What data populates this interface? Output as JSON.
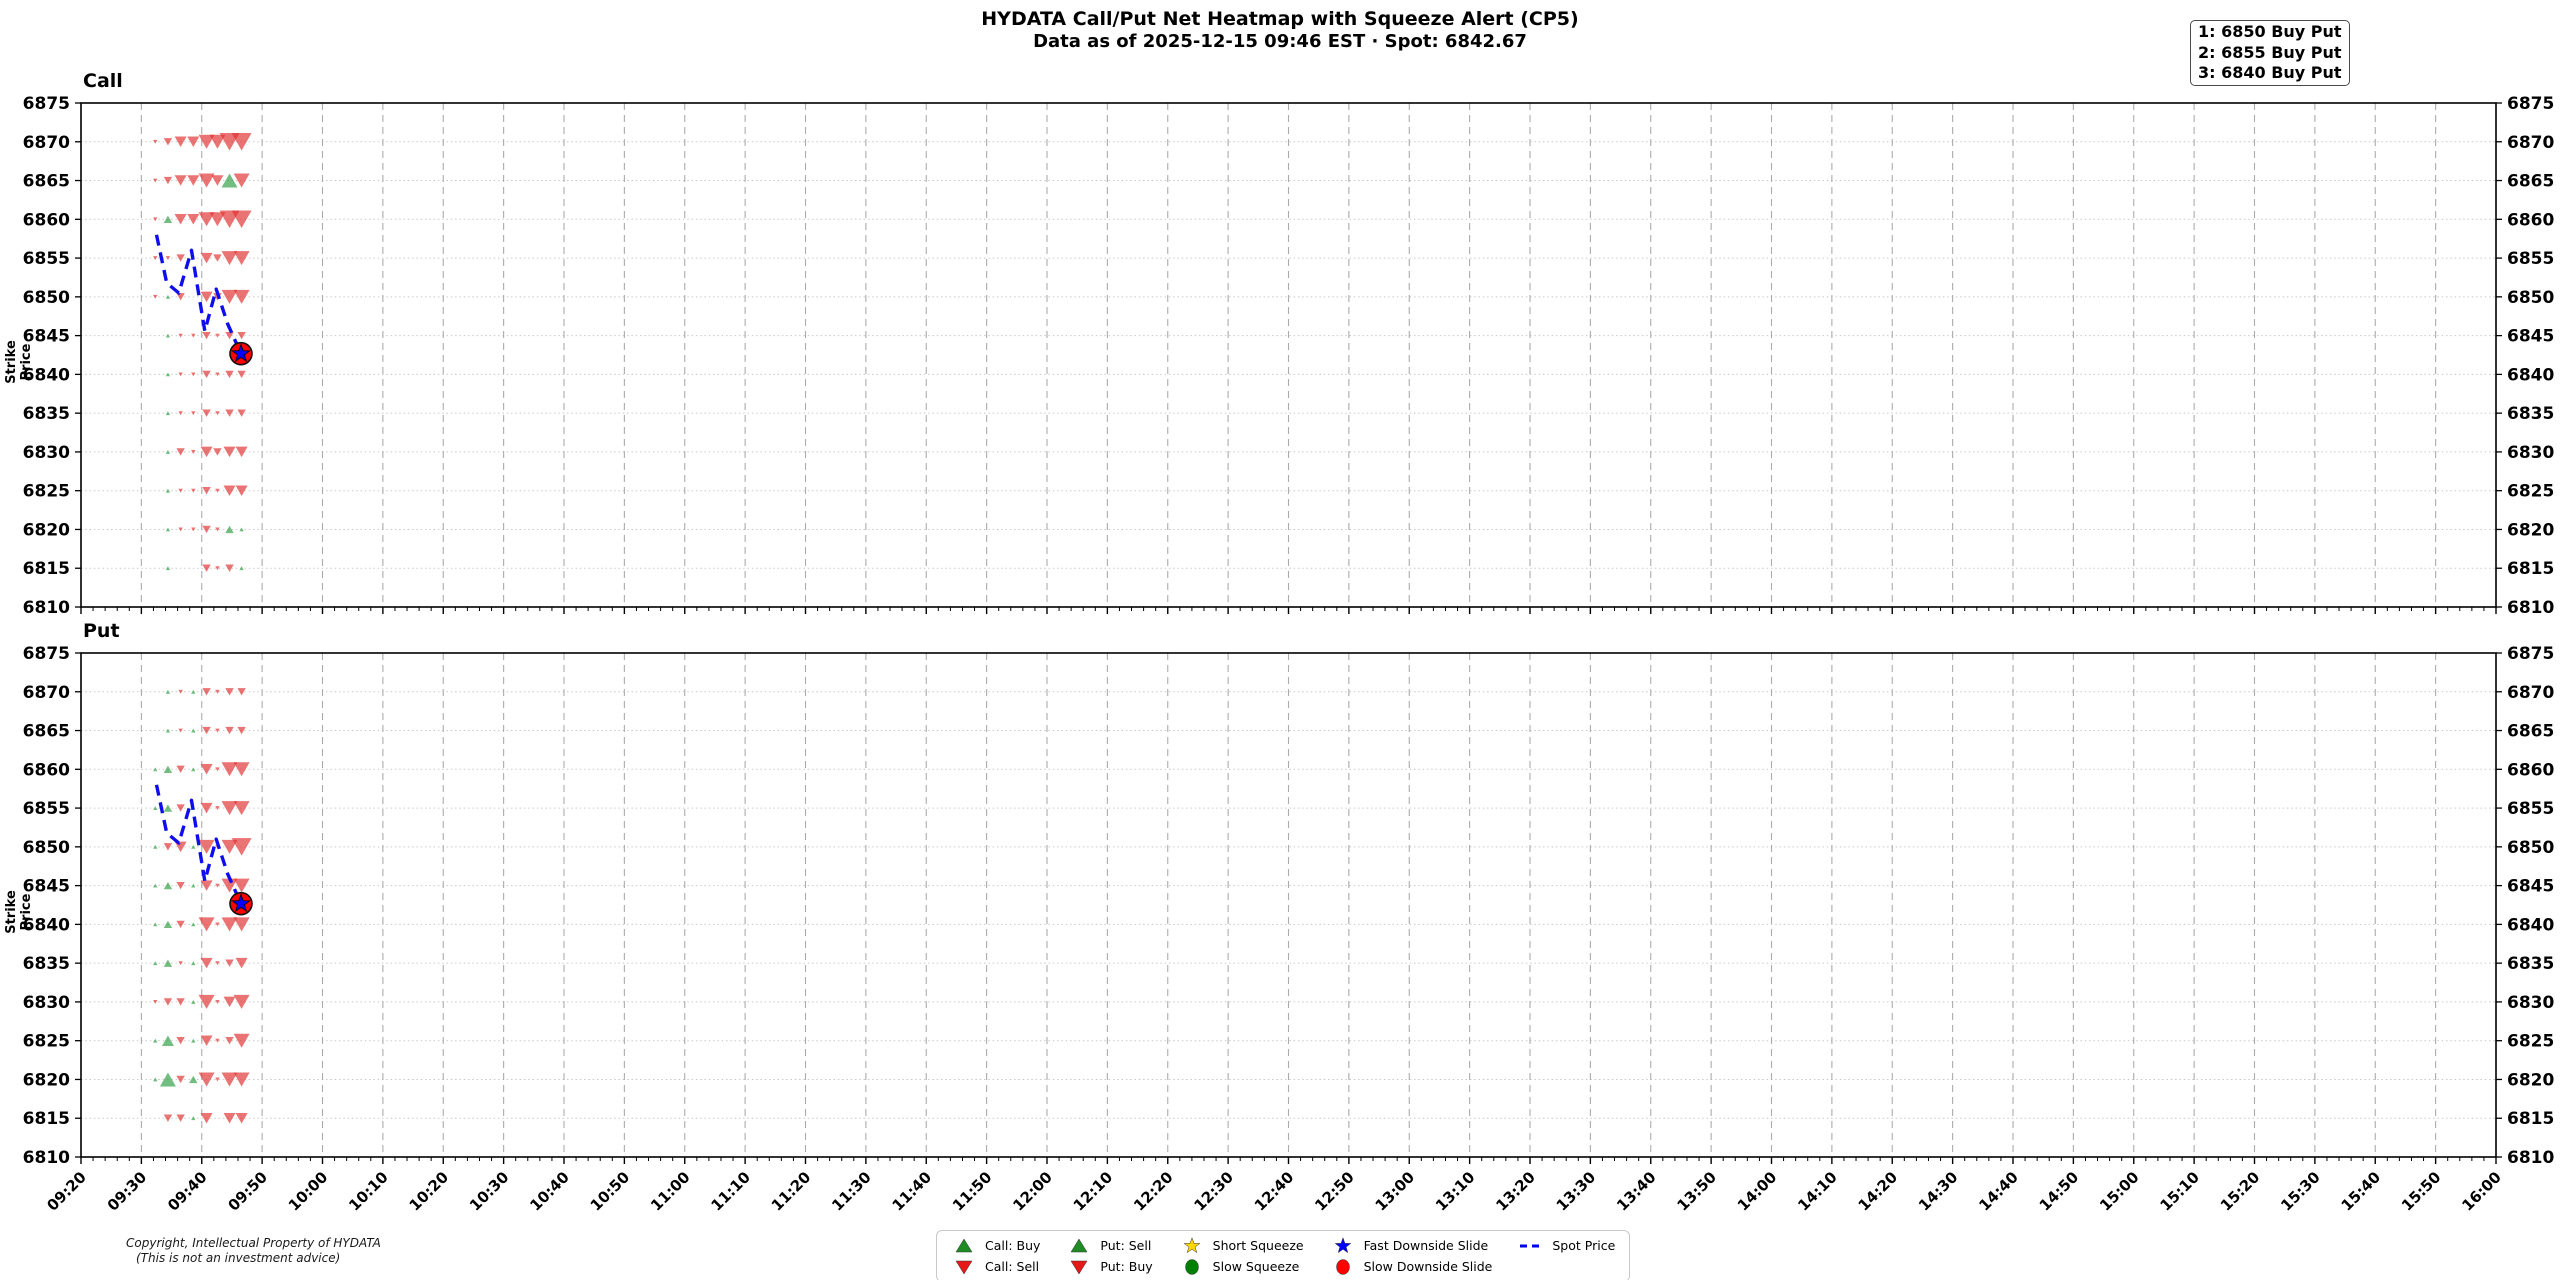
{
  "header": {
    "title": "HYDATA Call/Put Net Heatmap with Squeeze Alert (CP5)",
    "subtitle": "Data as of 2025-12-15 09:46 EST · Spot: 6842.67"
  },
  "annotation": {
    "lines": [
      "1: 6850 Buy Put",
      "2: 6855 Buy Put",
      "3: 6840 Buy Put"
    ]
  },
  "copyright": {
    "line1": "Copyright, Intellectual Property of HYDATA",
    "line2": "(This is not an investment advice)"
  },
  "legend": {
    "items": [
      {
        "label": "Call: Buy",
        "marker": "triangle-up",
        "color": "#1f8b24"
      },
      {
        "label": "Call: Sell",
        "marker": "triangle-down",
        "color": "#e61919"
      },
      {
        "label": "Put: Sell",
        "marker": "triangle-up",
        "color": "#1f8b24"
      },
      {
        "label": "Put: Buy",
        "marker": "triangle-down",
        "color": "#e61919"
      },
      {
        "label": "Short Squeeze",
        "marker": "star",
        "color": "#ffd700"
      },
      {
        "label": "Slow Squeeze",
        "marker": "circle",
        "color": "#008000"
      },
      {
        "label": "Fast Downside Slide",
        "marker": "star",
        "color": "#0000ff"
      },
      {
        "label": "Slow Downside Slide",
        "marker": "circle",
        "color": "#ff0000"
      },
      {
        "label": "Spot Price",
        "marker": "dashes",
        "color": "#0000ee"
      }
    ]
  },
  "colors": {
    "marker_down": "#e03131",
    "marker_up": "#2f9e44",
    "marker_opacity": 0.68,
    "spot_line": "#0d0dee",
    "event_circle_fill": "#ff0000",
    "event_circle_edge": "#111111",
    "event_star_fill": "#0000ff",
    "grid_horizontal": "#c9c9c9",
    "grid_vertical": "#ababab",
    "spine": "#000000"
  },
  "chart_data": {
    "type": "scatter",
    "shared_x": {
      "start": "09:20",
      "end": "16:00",
      "major_tick_minutes": 10,
      "minor_tick_minutes": 2,
      "ticks": [
        "09:20",
        "09:30",
        "09:40",
        "09:50",
        "10:00",
        "10:10",
        "10:20",
        "10:30",
        "10:40",
        "10:50",
        "11:00",
        "11:10",
        "11:20",
        "11:30",
        "11:40",
        "11:50",
        "12:00",
        "12:10",
        "12:20",
        "12:30",
        "12:40",
        "12:50",
        "13:00",
        "13:10",
        "13:20",
        "13:30",
        "13:40",
        "13:50",
        "14:00",
        "14:10",
        "14:20",
        "14:30",
        "14:40",
        "14:50",
        "15:00",
        "15:10",
        "15:20",
        "15:30",
        "15:40",
        "15:50",
        "16:00"
      ]
    },
    "shared_y": {
      "label": "Strike Price",
      "lim": [
        6810,
        6875
      ],
      "ticks": [
        6810,
        6815,
        6820,
        6825,
        6830,
        6835,
        6840,
        6845,
        6850,
        6855,
        6860,
        6865,
        6870,
        6875
      ]
    },
    "marker_x_minutes_after_0920": [
      12.3,
      14.4,
      16.5,
      18.6,
      20.8,
      22.6,
      24.6,
      26.6
    ],
    "spot_line": {
      "x_minutes_after_0920": [
        12.5,
        14.2,
        16.2,
        18.3,
        20.5,
        22.4,
        24.3,
        26.5
      ],
      "values": [
        6858,
        6851.8,
        6850.5,
        6856,
        6845.6,
        6851,
        6846.5,
        6842.67
      ]
    },
    "event": {
      "time": "09:46",
      "value": 6842.67,
      "x_minute_after_0920": 26.5,
      "markers": [
        "slow-downside-slide",
        "fast-downside-slide"
      ]
    },
    "panels": [
      {
        "title": "Call",
        "meaning": {
          "up": "Call: Buy",
          "dn": "Call: Sell"
        },
        "markers": [
          {
            "strike": 6870,
            "cells": [
              [
                "dn",
                1
              ],
              [
                "dn",
                2
              ],
              [
                "dn",
                3
              ],
              [
                "dn",
                3
              ],
              [
                "dn",
                4
              ],
              [
                "dn",
                4
              ],
              [
                "dn",
                5
              ],
              [
                "dn",
                5
              ]
            ]
          },
          {
            "strike": 6865,
            "cells": [
              [
                "dn",
                1
              ],
              [
                "dn",
                2
              ],
              [
                "dn",
                3
              ],
              [
                "dn",
                3
              ],
              [
                "dn",
                4
              ],
              [
                "dn",
                3
              ],
              [
                "up",
                4
              ],
              [
                "dn",
                4
              ]
            ]
          },
          {
            "strike": 6860,
            "cells": [
              [
                "dn",
                1
              ],
              [
                "up",
                2
              ],
              [
                "dn",
                3
              ],
              [
                "dn",
                3
              ],
              [
                "dn",
                4
              ],
              [
                "dn",
                4
              ],
              [
                "dn",
                5
              ],
              [
                "dn",
                5
              ]
            ]
          },
          {
            "strike": 6855,
            "cells": [
              [
                "dn",
                1
              ],
              [
                "dn",
                1
              ],
              [
                "dn",
                2
              ],
              null,
              [
                "dn",
                3
              ],
              [
                "dn",
                2
              ],
              [
                "dn",
                4
              ],
              [
                "dn",
                4
              ]
            ]
          },
          {
            "strike": 6850,
            "cells": [
              [
                "dn",
                1
              ],
              [
                "up",
                1
              ],
              [
                "dn",
                2
              ],
              null,
              [
                "dn",
                3
              ],
              [
                "dn",
                2
              ],
              [
                "dn",
                4
              ],
              [
                "dn",
                4
              ]
            ]
          },
          {
            "strike": 6845,
            "cells": [
              null,
              [
                "up",
                1
              ],
              [
                "dn",
                1
              ],
              [
                "dn",
                1
              ],
              [
                "dn",
                2
              ],
              [
                "dn",
                1
              ],
              [
                "dn",
                2
              ],
              [
                "dn",
                2
              ]
            ]
          },
          {
            "strike": 6840,
            "cells": [
              null,
              [
                "up",
                1
              ],
              [
                "dn",
                1
              ],
              [
                "dn",
                1
              ],
              [
                "dn",
                2
              ],
              [
                "dn",
                1
              ],
              [
                "dn",
                2
              ],
              [
                "dn",
                2
              ]
            ]
          },
          {
            "strike": 6835,
            "cells": [
              null,
              [
                "up",
                1
              ],
              [
                "dn",
                1
              ],
              [
                "dn",
                1
              ],
              [
                "dn",
                2
              ],
              [
                "dn",
                1
              ],
              [
                "dn",
                2
              ],
              [
                "dn",
                2
              ]
            ]
          },
          {
            "strike": 6830,
            "cells": [
              null,
              [
                "up",
                1
              ],
              [
                "dn",
                2
              ],
              [
                "dn",
                1
              ],
              [
                "dn",
                3
              ],
              [
                "dn",
                2
              ],
              [
                "dn",
                3
              ],
              [
                "dn",
                3
              ]
            ]
          },
          {
            "strike": 6825,
            "cells": [
              null,
              [
                "up",
                1
              ],
              [
                "dn",
                1
              ],
              [
                "dn",
                1
              ],
              [
                "dn",
                2
              ],
              [
                "dn",
                1
              ],
              [
                "dn",
                3
              ],
              [
                "dn",
                3
              ]
            ]
          },
          {
            "strike": 6820,
            "cells": [
              null,
              [
                "up",
                1
              ],
              [
                "dn",
                1
              ],
              [
                "dn",
                1
              ],
              [
                "dn",
                2
              ],
              [
                "dn",
                1
              ],
              [
                "up",
                2
              ],
              [
                "up",
                1
              ]
            ]
          },
          {
            "strike": 6815,
            "cells": [
              null,
              [
                "up",
                1
              ],
              null,
              null,
              [
                "dn",
                2
              ],
              [
                "dn",
                1
              ],
              [
                "dn",
                2
              ],
              [
                "up",
                1
              ]
            ]
          }
        ]
      },
      {
        "title": "Put",
        "meaning": {
          "up": "Put: Sell",
          "dn": "Put: Buy"
        },
        "markers": [
          {
            "strike": 6870,
            "cells": [
              null,
              [
                "up",
                1
              ],
              [
                "dn",
                1
              ],
              [
                "up",
                1
              ],
              [
                "dn",
                2
              ],
              [
                "dn",
                1
              ],
              [
                "dn",
                2
              ],
              [
                "dn",
                2
              ]
            ]
          },
          {
            "strike": 6865,
            "cells": [
              null,
              [
                "up",
                1
              ],
              [
                "dn",
                1
              ],
              [
                "up",
                1
              ],
              [
                "dn",
                2
              ],
              [
                "dn",
                1
              ],
              [
                "dn",
                2
              ],
              [
                "dn",
                2
              ]
            ]
          },
          {
            "strike": 6860,
            "cells": [
              [
                "up",
                1
              ],
              [
                "up",
                2
              ],
              [
                "dn",
                2
              ],
              [
                "up",
                1
              ],
              [
                "dn",
                3
              ],
              [
                "dn",
                1
              ],
              [
                "dn",
                4
              ],
              [
                "dn",
                4
              ]
            ]
          },
          {
            "strike": 6855,
            "cells": [
              [
                "up",
                1
              ],
              [
                "up",
                2
              ],
              [
                "dn",
                2
              ],
              [
                "up",
                1
              ],
              [
                "dn",
                3
              ],
              [
                "dn",
                1
              ],
              [
                "dn",
                4
              ],
              [
                "dn",
                4
              ]
            ]
          },
          {
            "strike": 6850,
            "cells": [
              [
                "up",
                1
              ],
              [
                "dn",
                2
              ],
              [
                "dn",
                3
              ],
              [
                "up",
                1
              ],
              [
                "dn",
                4
              ],
              [
                "dn",
                1
              ],
              [
                "dn",
                4
              ],
              [
                "dn",
                5
              ]
            ]
          },
          {
            "strike": 6845,
            "cells": [
              [
                "up",
                1
              ],
              [
                "up",
                2
              ],
              [
                "dn",
                2
              ],
              [
                "up",
                1
              ],
              [
                "dn",
                3
              ],
              [
                "dn",
                1
              ],
              [
                "dn",
                4
              ],
              [
                "dn",
                4
              ]
            ]
          },
          {
            "strike": 6840,
            "cells": [
              [
                "up",
                1
              ],
              [
                "up",
                2
              ],
              [
                "dn",
                2
              ],
              [
                "up",
                1
              ],
              [
                "dn",
                4
              ],
              [
                "dn",
                1
              ],
              [
                "dn",
                4
              ],
              [
                "dn",
                4
              ]
            ]
          },
          {
            "strike": 6835,
            "cells": [
              [
                "up",
                1
              ],
              [
                "up",
                2
              ],
              [
                "dn",
                1
              ],
              [
                "up",
                1
              ],
              [
                "dn",
                3
              ],
              [
                "dn",
                1
              ],
              [
                "dn",
                2
              ],
              [
                "dn",
                3
              ]
            ]
          },
          {
            "strike": 6830,
            "cells": [
              [
                "dn",
                1
              ],
              [
                "dn",
                2
              ],
              [
                "dn",
                2
              ],
              [
                "up",
                1
              ],
              [
                "dn",
                4
              ],
              [
                "dn",
                1
              ],
              [
                "dn",
                3
              ],
              [
                "dn",
                4
              ]
            ]
          },
          {
            "strike": 6825,
            "cells": [
              [
                "up",
                1
              ],
              [
                "up",
                3
              ],
              [
                "dn",
                2
              ],
              [
                "up",
                1
              ],
              [
                "dn",
                3
              ],
              [
                "dn",
                1
              ],
              [
                "dn",
                2
              ],
              [
                "dn",
                4
              ]
            ]
          },
          {
            "strike": 6820,
            "cells": [
              [
                "up",
                1
              ],
              [
                "up",
                4
              ],
              [
                "dn",
                2
              ],
              [
                "up",
                2
              ],
              [
                "dn",
                4
              ],
              [
                "dn",
                1
              ],
              [
                "dn",
                4
              ],
              [
                "dn",
                4
              ]
            ]
          },
          {
            "strike": 6815,
            "cells": [
              null,
              [
                "dn",
                2
              ],
              [
                "dn",
                2
              ],
              [
                "up",
                1
              ],
              [
                "dn",
                3
              ],
              null,
              [
                "dn",
                3
              ],
              [
                "dn",
                3
              ]
            ]
          }
        ]
      }
    ]
  }
}
